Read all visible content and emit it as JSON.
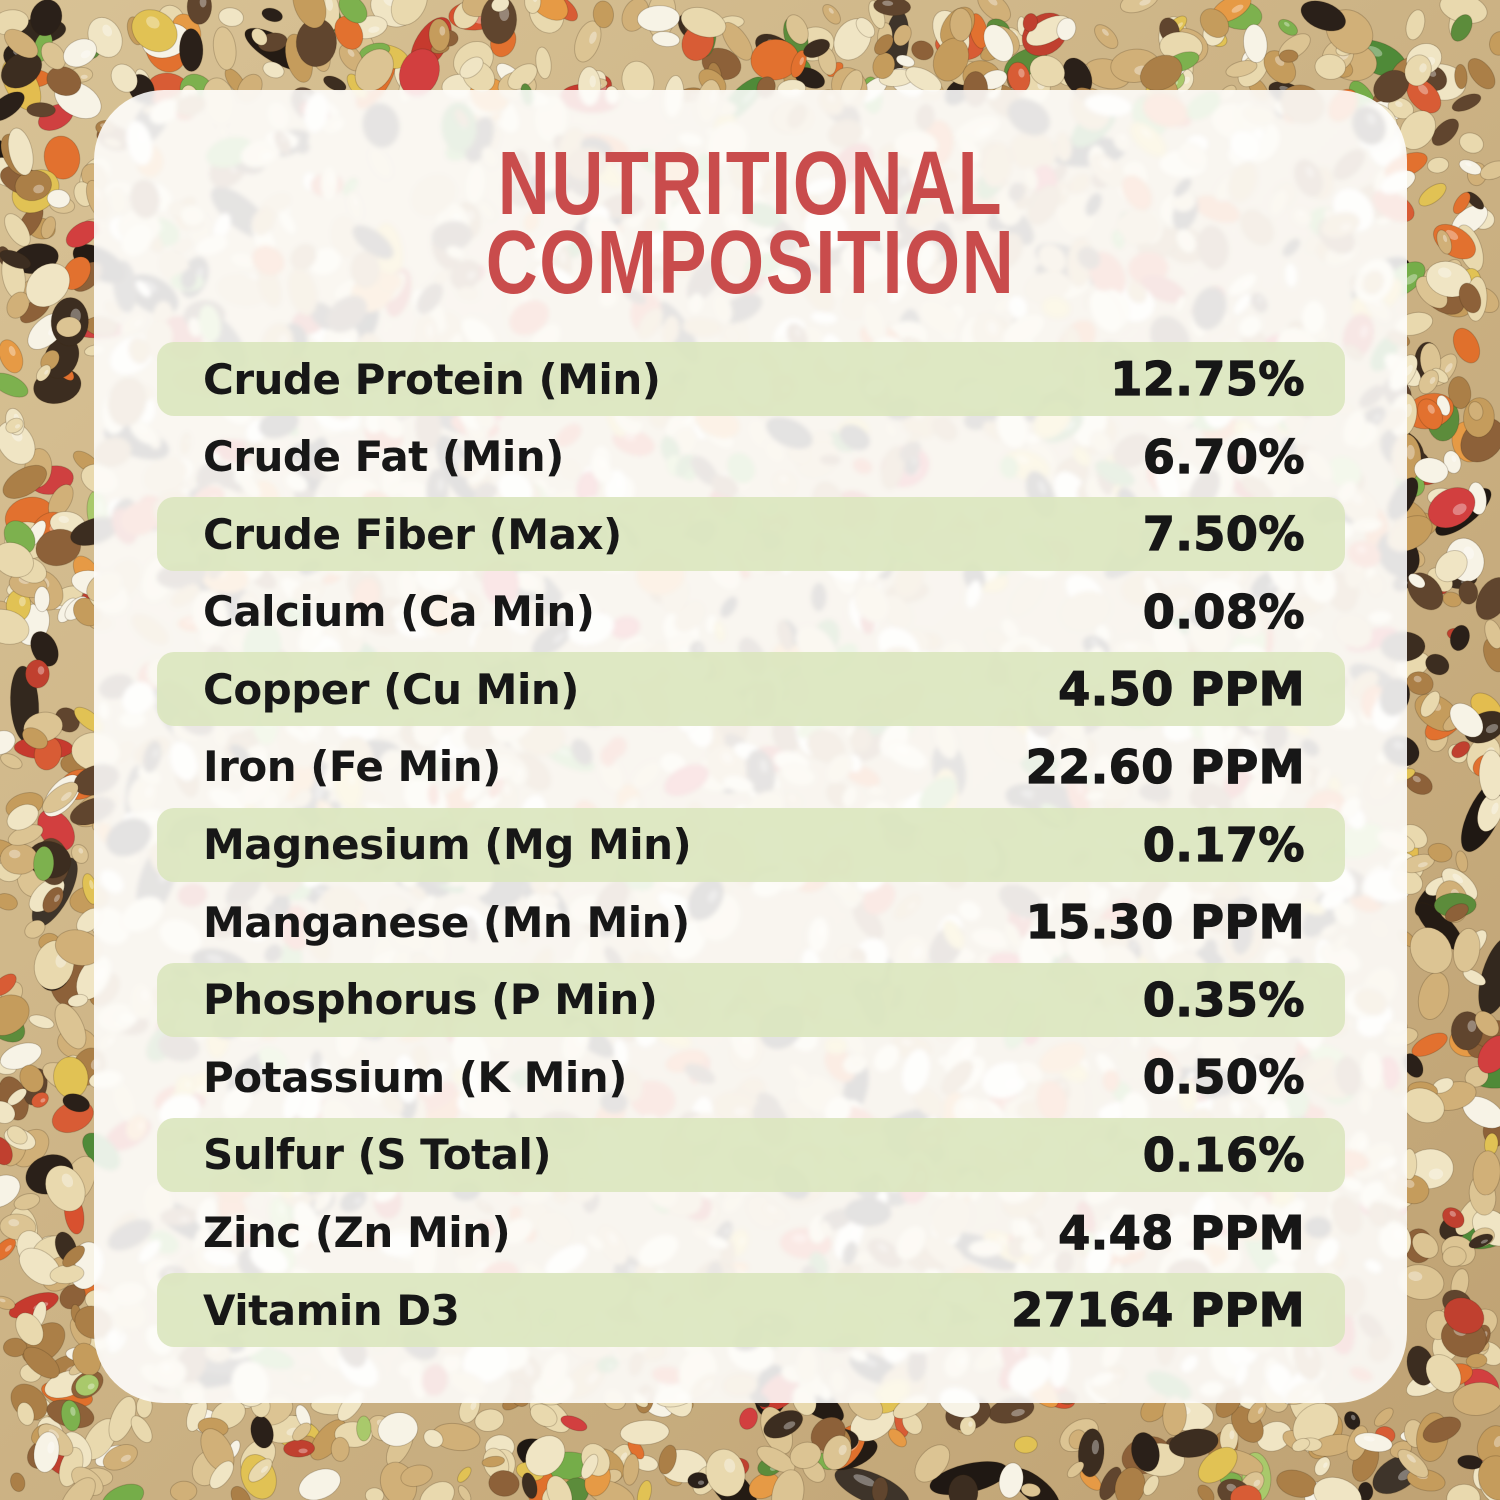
{
  "title": {
    "line1": "NUTRITIONAL",
    "line2": "COMPOSITION"
  },
  "table": {
    "rows": [
      {
        "label": "Crude Protein (Min)",
        "value": "12.75%"
      },
      {
        "label": "Crude Fat (Min)",
        "value": "6.70%"
      },
      {
        "label": "Crude Fiber (Max)",
        "value": "7.50%"
      },
      {
        "label": "Calcium (Ca Min)",
        "value": "0.08%"
      },
      {
        "label": "Copper (Cu Min)",
        "value": "4.50 PPM"
      },
      {
        "label": "Iron (Fe Min)",
        "value": "22.60 PPM"
      },
      {
        "label": "Magnesium (Mg Min)",
        "value": "0.17%"
      },
      {
        "label": "Manganese (Mn Min)",
        "value": "15.30 PPM"
      },
      {
        "label": "Phosphorus (P Min)",
        "value": "0.35%"
      },
      {
        "label": "Potassium (K Min)",
        "value": "0.50%"
      },
      {
        "label": "Sulfur (S Total)",
        "value": "0.16%"
      },
      {
        "label": "Zinc (Zn Min)",
        "value": "4.48 PPM"
      },
      {
        "label": "Vitamin D3",
        "value": "27164 PPM"
      }
    ]
  },
  "colors": {
    "title_red": "#c94c4c",
    "band_green": "#dbe6c0",
    "text_dark": "#171717",
    "card_white": "#ffffff"
  }
}
